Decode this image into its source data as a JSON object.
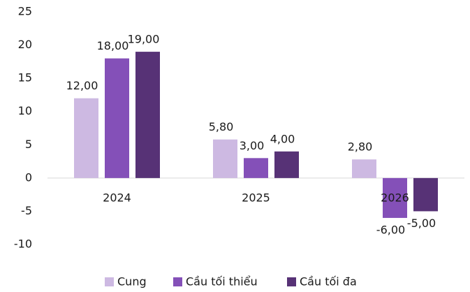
{
  "chart_data": {
    "type": "bar",
    "categories": [
      "2024",
      "2025",
      "2026"
    ],
    "series": [
      {
        "name": "Cung",
        "color": "#cdb9e2",
        "values": [
          12,
          5.8,
          2.8
        ],
        "value_labels": [
          "12,00",
          "5,80",
          "2,80"
        ]
      },
      {
        "name": "Cầu tối thiểu",
        "color": "#8450b8",
        "values": [
          18,
          3,
          -6
        ],
        "value_labels": [
          "18,00",
          "3,00",
          "-6,00"
        ]
      },
      {
        "name": "Cầu tối đa",
        "color": "#573276",
        "values": [
          19,
          4,
          -5
        ],
        "value_labels": [
          "19,00",
          "4,00",
          "-5,00"
        ]
      }
    ],
    "ylim": [
      -10,
      25
    ],
    "yticks": [
      -10,
      -5,
      0,
      5,
      10,
      15,
      20,
      25
    ],
    "grid": false,
    "legend": "bottom"
  }
}
